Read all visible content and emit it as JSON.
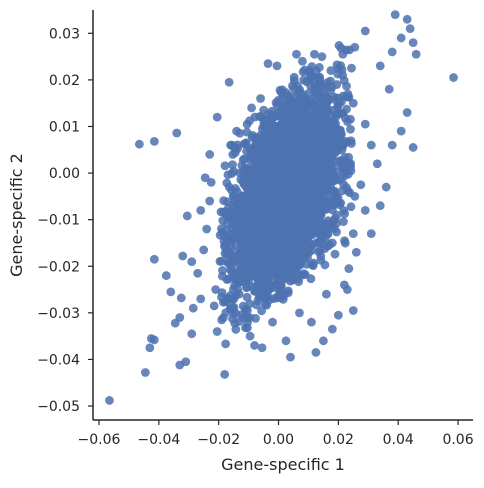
{
  "chart_data": {
    "type": "scatter",
    "title": "",
    "xlabel": "Gene-specific 1",
    "ylabel": "Gene-specific 2",
    "xlim": [
      -0.062,
      0.065
    ],
    "ylim": [
      -0.053,
      0.035
    ],
    "xticks": [
      -0.06,
      -0.04,
      -0.02,
      0.0,
      0.02,
      0.04,
      0.06
    ],
    "xtick_labels": [
      "−0.06",
      "−0.04",
      "−0.02",
      "0.00",
      "0.02",
      "0.04",
      "0.06"
    ],
    "yticks": [
      -0.05,
      -0.04,
      -0.03,
      -0.02,
      -0.01,
      0.0,
      0.01,
      0.02,
      0.03
    ],
    "ytick_labels": [
      "−0.05",
      "−0.04",
      "−0.03",
      "−0.02",
      "−0.01",
      "0.00",
      "0.01",
      "0.02",
      "0.03"
    ],
    "grid": false,
    "color": "#4c72b0",
    "series": [
      {
        "points": [
          [
            -0.0565,
            -0.0488
          ],
          [
            -0.0445,
            -0.0428
          ],
          [
            -0.0465,
            0.0062
          ],
          [
            -0.0415,
            0.0068
          ],
          [
            -0.034,
            0.0086
          ],
          [
            -0.043,
            -0.0375
          ],
          [
            -0.0425,
            -0.0355
          ],
          [
            -0.0415,
            -0.0358
          ],
          [
            -0.033,
            -0.0412
          ],
          [
            -0.031,
            -0.0405
          ],
          [
            -0.018,
            -0.0432
          ],
          [
            -0.0415,
            -0.0185
          ],
          [
            -0.0375,
            -0.022
          ],
          [
            -0.036,
            -0.0255
          ],
          [
            -0.0325,
            -0.0268
          ],
          [
            -0.032,
            -0.0178
          ],
          [
            -0.0305,
            -0.0092
          ],
          [
            -0.0345,
            -0.0322
          ],
          [
            -0.033,
            -0.031
          ],
          [
            -0.029,
            -0.0345
          ],
          [
            -0.0285,
            -0.029
          ],
          [
            -0.0215,
            -0.0285
          ],
          [
            -0.0205,
            -0.034
          ],
          [
            -0.019,
            -0.0315
          ],
          [
            -0.026,
            -0.027
          ],
          [
            -0.024,
            -0.012
          ],
          [
            -0.026,
            -0.008
          ],
          [
            -0.0205,
            0.012
          ],
          [
            -0.023,
            0.004
          ],
          [
            -0.0165,
            0.0195
          ],
          [
            -0.0095,
            -0.035
          ],
          [
            -0.008,
            -0.037
          ],
          [
            -0.0055,
            -0.0375
          ],
          [
            0.0025,
            -0.036
          ],
          [
            0.004,
            -0.0395
          ],
          [
            0.0125,
            -0.0385
          ],
          [
            0.015,
            -0.036
          ],
          [
            0.011,
            -0.032
          ],
          [
            0.018,
            -0.0335
          ],
          [
            0.02,
            -0.0305
          ],
          [
            0.025,
            -0.0295
          ],
          [
            0.023,
            -0.025
          ],
          [
            0.026,
            -0.017
          ],
          [
            0.025,
            -0.013
          ],
          [
            0.029,
            -0.008
          ],
          [
            0.031,
            -0.013
          ],
          [
            0.034,
            -0.007
          ],
          [
            0.036,
            -0.003
          ],
          [
            0.033,
            0.002
          ],
          [
            0.038,
            0.006
          ],
          [
            0.041,
            0.009
          ],
          [
            0.045,
            0.0055
          ],
          [
            0.043,
            0.013
          ],
          [
            0.037,
            0.018
          ],
          [
            0.034,
            0.023
          ],
          [
            0.038,
            0.026
          ],
          [
            0.041,
            0.029
          ],
          [
            0.043,
            0.033
          ],
          [
            0.039,
            0.034
          ],
          [
            0.044,
            0.031
          ],
          [
            0.046,
            0.0255
          ],
          [
            0.045,
            0.028
          ],
          [
            0.029,
            0.0305
          ],
          [
            0.0255,
            0.027
          ],
          [
            0.0215,
            0.0255
          ],
          [
            0.0175,
            0.022
          ],
          [
            0.0145,
            0.025
          ],
          [
            0.012,
            0.0255
          ],
          [
            0.008,
            0.024
          ],
          [
            0.006,
            0.0255
          ],
          [
            -0.0005,
            0.023
          ],
          [
            -0.0035,
            0.0235
          ],
          [
            0.0585,
            0.0205
          ],
          [
            0.0195,
            0.019
          ],
          [
            0.025,
            0.015
          ],
          [
            0.029,
            0.0105
          ],
          [
            0.031,
            0.006
          ],
          [
            0.0275,
            -0.0025
          ],
          [
            0.0255,
            -0.005
          ],
          [
            0.0235,
            -0.0205
          ],
          [
            0.022,
            -0.024
          ],
          [
            -0.029,
            -0.019
          ],
          [
            -0.027,
            -0.0215
          ],
          [
            -0.025,
            -0.0165
          ],
          [
            -0.023,
            -0.006
          ],
          [
            -0.0245,
            -0.001
          ],
          [
            -0.0225,
            -0.002
          ],
          [
            -0.016,
            0.006
          ],
          [
            -0.014,
            0.009
          ],
          [
            -0.009,
            0.014
          ],
          [
            -0.006,
            0.016
          ],
          [
            0.0105,
            0.022
          ],
          [
            0.0155,
            0.018
          ],
          [
            0.02,
            0.008
          ],
          [
            0.022,
            0.001
          ],
          [
            0.0195,
            -0.009
          ],
          [
            0.018,
            -0.015
          ],
          [
            0.016,
            -0.026
          ],
          [
            0.007,
            -0.03
          ],
          [
            -0.002,
            -0.032
          ],
          [
            -0.012,
            -0.031
          ],
          [
            -0.017,
            -0.027
          ],
          [
            -0.021,
            -0.025
          ]
        ]
      }
    ],
    "cloud": {
      "count": 3600,
      "center": [
        0.0025,
        -0.004
      ],
      "sd_x": 0.0092,
      "sd_y": 0.0108,
      "corr": 0.45
    }
  }
}
